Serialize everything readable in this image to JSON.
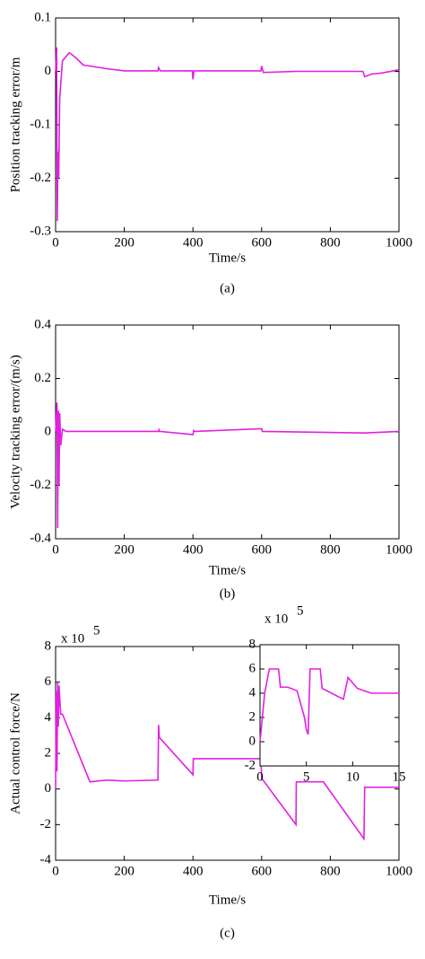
{
  "chart_data": [
    {
      "type": "line",
      "caption": "(a)",
      "xlabel": "Time/s",
      "ylabel": "Position tracking error/m",
      "color": "#e31fe3",
      "x": [
        0,
        3,
        5,
        7,
        9,
        12,
        20,
        40,
        60,
        80,
        120,
        150,
        200,
        298,
        300,
        305,
        398,
        400,
        403,
        598,
        600,
        605,
        700,
        895,
        900,
        920,
        950,
        1000
      ],
      "values": [
        0,
        0.045,
        -0.28,
        -0.15,
        -0.2,
        -0.05,
        0.02,
        0.035,
        0.025,
        0.012,
        0.008,
        0.005,
        0.001,
        0.001,
        0.007,
        0.001,
        0.001,
        -0.015,
        0.001,
        0.001,
        0.01,
        -0.002,
        0,
        0,
        -0.01,
        -0.005,
        -0.003,
        0.003
      ],
      "xlim": [
        0,
        1000
      ],
      "xticks": [
        0,
        200,
        400,
        600,
        800,
        1000
      ],
      "ylim": [
        -0.3,
        0.1
      ],
      "yticks": [
        -0.3,
        -0.2,
        -0.1,
        0,
        0.1
      ]
    },
    {
      "type": "line",
      "caption": "(b)",
      "xlabel": "Time/s",
      "ylabel": "Velocity tracking error/(m/s)",
      "color": "#e31fe3",
      "x": [
        0,
        4,
        6,
        8,
        10,
        12,
        15,
        20,
        30,
        300,
        301,
        303,
        400,
        402,
        405,
        600,
        602,
        900,
        1000
      ],
      "values": [
        0,
        0.11,
        -0.36,
        0.08,
        -0.2,
        0.07,
        -0.05,
        0.01,
        0.002,
        0.002,
        0.008,
        0.002,
        -0.01,
        0.005,
        0.002,
        0.012,
        0.002,
        -0.004,
        0.002
      ],
      "xlim": [
        0,
        1000
      ],
      "xticks": [
        0,
        200,
        400,
        600,
        800,
        1000
      ],
      "ylim": [
        -0.4,
        0.4
      ],
      "yticks": [
        -0.4,
        -0.2,
        0,
        0.2,
        0.4
      ]
    },
    {
      "type": "line",
      "caption": "(c)",
      "xlabel": "Time/s",
      "ylabel": "Actual control force/N",
      "color": "#e31fe3",
      "multiplier": {
        "base": "x 10",
        "power": "5"
      },
      "x": [
        0,
        2,
        4,
        6,
        8,
        10,
        15,
        20,
        100,
        150,
        200,
        298,
        300,
        302,
        400,
        401,
        598,
        600,
        700,
        701,
        780,
        898,
        900,
        1000
      ],
      "values": [
        0,
        5.5,
        1,
        6,
        3.5,
        5.8,
        4.2,
        4.2,
        0.4,
        0.5,
        0.45,
        0.5,
        3.6,
        2.9,
        0.8,
        1.7,
        1.7,
        0.6,
        -2,
        0.4,
        0.4,
        -2.8,
        0.1,
        0.1
      ],
      "xlim": [
        0,
        1000
      ],
      "xticks": [
        0,
        200,
        400,
        600,
        800,
        1000
      ],
      "ylim": [
        -4,
        8
      ],
      "yticks": [
        -4,
        -2,
        0,
        2,
        4,
        6,
        8
      ]
    },
    {
      "type": "line",
      "color": "#e31fe3",
      "multiplier": {
        "base": "x 10",
        "power": "5"
      },
      "x": [
        0,
        0.5,
        1,
        2,
        2.2,
        3,
        4,
        4.8,
        5,
        5.2,
        5.4,
        6.5,
        6.7,
        9,
        9.5,
        10.5,
        12,
        15
      ],
      "values": [
        0,
        4,
        6,
        6,
        4.5,
        4.5,
        4.2,
        2,
        1,
        0.6,
        6,
        6,
        4.4,
        3.5,
        5.3,
        4.4,
        4,
        4
      ],
      "xlim": [
        0,
        15
      ],
      "xticks": [
        0,
        5,
        10,
        15
      ],
      "ylim": [
        -2,
        8
      ],
      "yticks": [
        -2,
        0,
        2,
        4,
        6,
        8
      ]
    }
  ]
}
